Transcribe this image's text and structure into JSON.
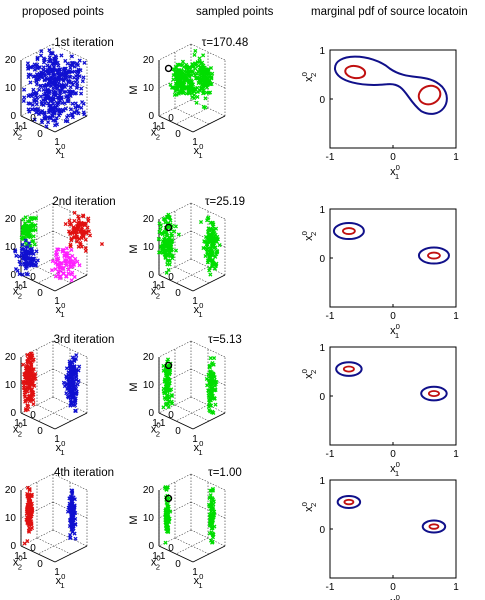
{
  "column_headers": {
    "proposed": "proposed points",
    "sampled": "sampled points",
    "marginal": "marginal pdf of source locatoin"
  },
  "colors": {
    "blue": "#1010d0",
    "green": "#00dd00",
    "red": "#e01010",
    "magenta": "#ff20ff",
    "contour_outer": "#10108a",
    "contour_inner": "#c01010",
    "axis": "#000000"
  },
  "chart_data": [
    {
      "type": "scatter",
      "panel": "proposed",
      "row": 1,
      "title": "1st iteration",
      "zlabel": "M",
      "xlabel": "x_1^0",
      "ylabel": "x_2^0",
      "zlim": [
        0,
        20
      ],
      "ztick_labels": [
        "0",
        "10",
        "20"
      ],
      "x_tick_labels": [
        "-1",
        "0",
        "1"
      ],
      "y_tick_labels": [
        "0",
        "1"
      ],
      "grid": true,
      "series": [
        {
          "color": "blue",
          "cluster": {
            "x": [
              -1,
              1
            ],
            "y": [
              -1,
              1
            ],
            "z": [
              0,
              20
            ]
          },
          "count": 420
        }
      ]
    },
    {
      "type": "scatter",
      "panel": "sampled",
      "row": 1,
      "title": "τ=170.48",
      "zlabel": "M",
      "xlabel": "x_1^0",
      "ylabel": "x_2^0",
      "zlim": [
        0,
        20
      ],
      "ztick_labels": [
        "0",
        "10",
        "20"
      ],
      "x_tick_labels": [
        "-1",
        "0",
        "1"
      ],
      "y_tick_labels": [
        "0",
        "1"
      ],
      "grid": true,
      "true_source": {
        "x": -0.7,
        "y": 0.55,
        "z": 15
      },
      "series": [
        {
          "color": "green",
          "cluster": {
            "x": [
              -0.9,
              0.9
            ],
            "y": [
              -0.6,
              0.9
            ],
            "z": [
              8,
              18
            ]
          },
          "count": 320,
          "shape": "ring"
        }
      ]
    },
    {
      "type": "contour",
      "panel": "marginal",
      "row": 1,
      "xlabel": "x_1^0",
      "ylabel": "x_2^0",
      "xlim": [
        -1,
        1
      ],
      "ylim": [
        -1,
        1
      ],
      "x_tick_labels": [
        "-1",
        "0",
        "1"
      ],
      "y_tick_labels": [
        "-1",
        "0",
        "1"
      ]
    },
    {
      "type": "scatter",
      "panel": "proposed",
      "row": 2,
      "title": "2nd iteration",
      "zlabel": "M",
      "xlabel": "x_1^0",
      "ylabel": "x_2^0",
      "zlim": [
        0,
        20
      ],
      "ztick_labels": [
        "0",
        "10",
        "20"
      ],
      "x_tick_labels": [
        "-1",
        "0",
        "1"
      ],
      "y_tick_labels": [
        "0",
        "1"
      ],
      "grid": true,
      "series": [
        {
          "color": "green",
          "count": 70
        },
        {
          "color": "red",
          "count": 80
        },
        {
          "color": "blue",
          "count": 90
        },
        {
          "color": "magenta",
          "count": 80
        }
      ]
    },
    {
      "type": "scatter",
      "panel": "sampled",
      "row": 2,
      "title": "τ=25.19",
      "zlabel": "M",
      "xlabel": "x_1^0",
      "ylabel": "x_2^0",
      "zlim": [
        0,
        20
      ],
      "ztick_labels": [
        "0",
        "10",
        "20"
      ],
      "x_tick_labels": [
        "-1",
        "0",
        "1"
      ],
      "y_tick_labels": [
        "0",
        "1"
      ],
      "grid": true,
      "true_source": {
        "x": -0.7,
        "y": 0.55,
        "z": 15
      },
      "series": [
        {
          "color": "green",
          "count": 260
        }
      ]
    },
    {
      "type": "contour",
      "panel": "marginal",
      "row": 2,
      "xlabel": "x_1^0",
      "ylabel": "x_2^0",
      "xlim": [
        -1,
        1
      ],
      "ylim": [
        -1,
        1
      ],
      "x_tick_labels": [
        "-1",
        "0",
        "1"
      ],
      "y_tick_labels": [
        "-1",
        "0",
        "1"
      ],
      "modes": [
        {
          "x": -0.7,
          "y": 0.55
        },
        {
          "x": 0.65,
          "y": 0.05
        }
      ]
    },
    {
      "type": "scatter",
      "panel": "proposed",
      "row": 3,
      "title": "3rd iteration",
      "zlabel": "M",
      "xlabel": "x_1^0",
      "ylabel": "x_2^0",
      "zlim": [
        0,
        20
      ],
      "ztick_labels": [
        "0",
        "10",
        "20"
      ],
      "x_tick_labels": [
        "-1",
        "0",
        "1"
      ],
      "y_tick_labels": [
        "0",
        "1"
      ],
      "grid": true,
      "series": [
        {
          "color": "red",
          "count": 150
        },
        {
          "color": "blue",
          "count": 150
        }
      ]
    },
    {
      "type": "scatter",
      "panel": "sampled",
      "row": 3,
      "title": "τ=5.13",
      "zlabel": "M",
      "xlabel": "x_1^0",
      "ylabel": "x_2^0",
      "zlim": [
        0,
        20
      ],
      "ztick_labels": [
        "0",
        "10",
        "20"
      ],
      "x_tick_labels": [
        "-1",
        "0",
        "1"
      ],
      "y_tick_labels": [
        "0",
        "1"
      ],
      "grid": true,
      "true_source": {
        "x": -0.7,
        "y": 0.55,
        "z": 15
      },
      "series": [
        {
          "color": "green",
          "count": 200
        }
      ]
    },
    {
      "type": "contour",
      "panel": "marginal",
      "row": 3,
      "xlabel": "x_1^0",
      "ylabel": "x_2^0",
      "xlim": [
        -1,
        1
      ],
      "ylim": [
        -1,
        1
      ],
      "x_tick_labels": [
        "-1",
        "0",
        "1"
      ],
      "y_tick_labels": [
        "-1",
        "0",
        "1"
      ],
      "modes": [
        {
          "x": -0.7,
          "y": 0.55
        },
        {
          "x": 0.65,
          "y": 0.05
        }
      ]
    },
    {
      "type": "scatter",
      "panel": "proposed",
      "row": 4,
      "title": "4th iteration",
      "zlabel": "M",
      "xlabel": "x_1^0",
      "ylabel": "x_2^0",
      "zlim": [
        0,
        20
      ],
      "ztick_labels": [
        "0",
        "10",
        "20"
      ],
      "x_tick_labels": [
        "-1",
        "0",
        "1"
      ],
      "y_tick_labels": [
        "0",
        "1"
      ],
      "grid": true,
      "series": [
        {
          "color": "red",
          "count": 110
        },
        {
          "color": "blue",
          "count": 110
        }
      ]
    },
    {
      "type": "scatter",
      "panel": "sampled",
      "row": 4,
      "title": "τ=1.00",
      "zlabel": "M",
      "xlabel": "x_1^0",
      "ylabel": "x_2^0",
      "zlim": [
        0,
        20
      ],
      "ztick_labels": [
        "0",
        "10",
        "20"
      ],
      "x_tick_labels": [
        "-1",
        "0",
        "1"
      ],
      "y_tick_labels": [
        "0",
        "1"
      ],
      "grid": true,
      "true_source": {
        "x": -0.7,
        "y": 0.55,
        "z": 15
      },
      "series": [
        {
          "color": "green",
          "count": 150
        }
      ]
    },
    {
      "type": "contour",
      "panel": "marginal",
      "row": 4,
      "xlabel": "x_1^0",
      "ylabel": "x_2^0",
      "xlim": [
        -1,
        1
      ],
      "ylim": [
        -1,
        1
      ],
      "x_tick_labels": [
        "-1",
        "0",
        "1"
      ],
      "y_tick_labels": [
        "-1",
        "0",
        "1"
      ],
      "modes": [
        {
          "x": -0.7,
          "y": 0.55
        },
        {
          "x": 0.65,
          "y": 0.05
        }
      ]
    }
  ]
}
